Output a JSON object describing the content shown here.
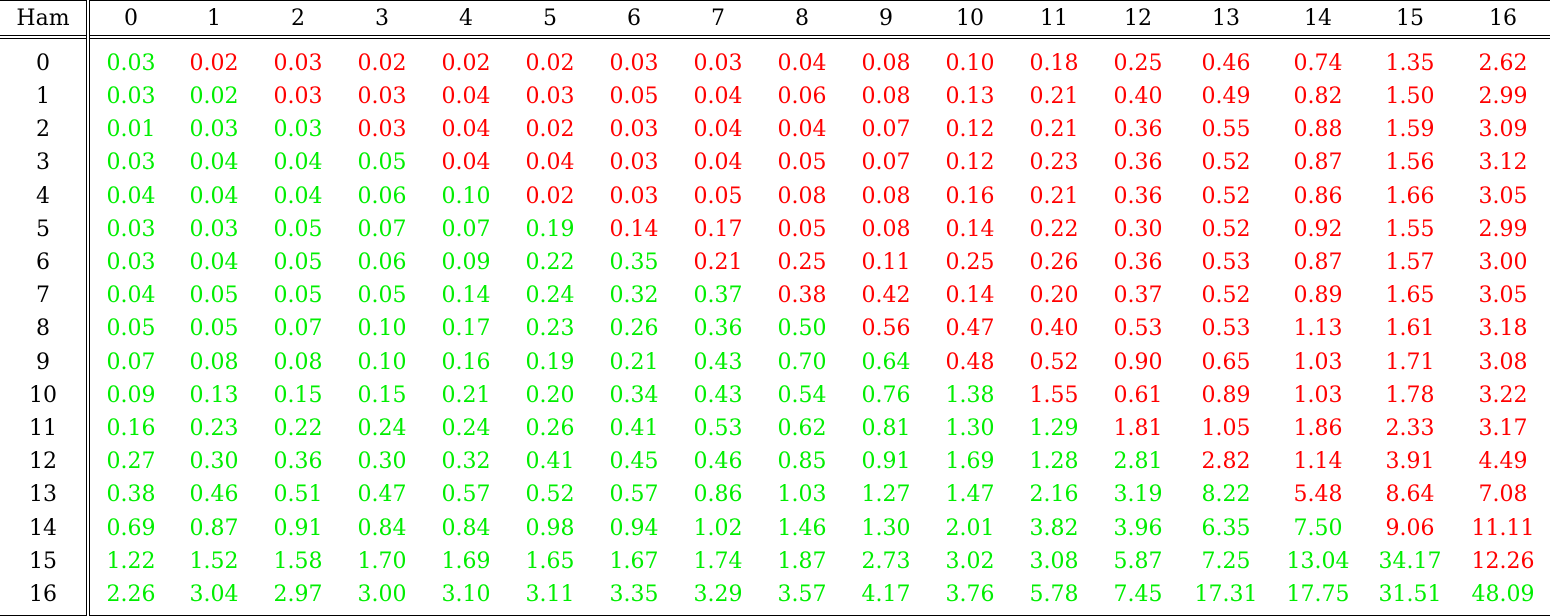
{
  "table": {
    "corner_label": "Ham",
    "columns": [
      "0",
      "1",
      "2",
      "3",
      "4",
      "5",
      "6",
      "7",
      "8",
      "9",
      "10",
      "11",
      "12",
      "13",
      "14",
      "15",
      "16"
    ],
    "colors": {
      "green": "#00ee00",
      "red": "#ff0000"
    },
    "rows": [
      {
        "label": "0",
        "values": [
          "0.03",
          "0.02",
          "0.03",
          "0.02",
          "0.02",
          "0.02",
          "0.03",
          "0.03",
          "0.04",
          "0.08",
          "0.10",
          "0.18",
          "0.25",
          "0.46",
          "0.74",
          "1.35",
          "2.62"
        ],
        "colors": [
          "g",
          "r",
          "r",
          "r",
          "r",
          "r",
          "r",
          "r",
          "r",
          "r",
          "r",
          "r",
          "r",
          "r",
          "r",
          "r",
          "r"
        ]
      },
      {
        "label": "1",
        "values": [
          "0.03",
          "0.02",
          "0.03",
          "0.03",
          "0.04",
          "0.03",
          "0.05",
          "0.04",
          "0.06",
          "0.08",
          "0.13",
          "0.21",
          "0.40",
          "0.49",
          "0.82",
          "1.50",
          "2.99"
        ],
        "colors": [
          "g",
          "g",
          "r",
          "r",
          "r",
          "r",
          "r",
          "r",
          "r",
          "r",
          "r",
          "r",
          "r",
          "r",
          "r",
          "r",
          "r"
        ]
      },
      {
        "label": "2",
        "values": [
          "0.01",
          "0.03",
          "0.03",
          "0.03",
          "0.04",
          "0.02",
          "0.03",
          "0.04",
          "0.04",
          "0.07",
          "0.12",
          "0.21",
          "0.36",
          "0.55",
          "0.88",
          "1.59",
          "3.09"
        ],
        "colors": [
          "g",
          "g",
          "g",
          "r",
          "r",
          "r",
          "r",
          "r",
          "r",
          "r",
          "r",
          "r",
          "r",
          "r",
          "r",
          "r",
          "r"
        ]
      },
      {
        "label": "3",
        "values": [
          "0.03",
          "0.04",
          "0.04",
          "0.05",
          "0.04",
          "0.04",
          "0.03",
          "0.04",
          "0.05",
          "0.07",
          "0.12",
          "0.23",
          "0.36",
          "0.52",
          "0.87",
          "1.56",
          "3.12"
        ],
        "colors": [
          "g",
          "g",
          "g",
          "g",
          "r",
          "r",
          "r",
          "r",
          "r",
          "r",
          "r",
          "r",
          "r",
          "r",
          "r",
          "r",
          "r"
        ]
      },
      {
        "label": "4",
        "values": [
          "0.04",
          "0.04",
          "0.04",
          "0.06",
          "0.10",
          "0.02",
          "0.03",
          "0.05",
          "0.08",
          "0.08",
          "0.16",
          "0.21",
          "0.36",
          "0.52",
          "0.86",
          "1.66",
          "3.05"
        ],
        "colors": [
          "g",
          "g",
          "g",
          "g",
          "g",
          "r",
          "r",
          "r",
          "r",
          "r",
          "r",
          "r",
          "r",
          "r",
          "r",
          "r",
          "r"
        ]
      },
      {
        "label": "5",
        "values": [
          "0.03",
          "0.03",
          "0.05",
          "0.07",
          "0.07",
          "0.19",
          "0.14",
          "0.17",
          "0.05",
          "0.08",
          "0.14",
          "0.22",
          "0.30",
          "0.52",
          "0.92",
          "1.55",
          "2.99"
        ],
        "colors": [
          "g",
          "g",
          "g",
          "g",
          "g",
          "g",
          "r",
          "r",
          "r",
          "r",
          "r",
          "r",
          "r",
          "r",
          "r",
          "r",
          "r"
        ]
      },
      {
        "label": "6",
        "values": [
          "0.03",
          "0.04",
          "0.05",
          "0.06",
          "0.09",
          "0.22",
          "0.35",
          "0.21",
          "0.25",
          "0.11",
          "0.25",
          "0.26",
          "0.36",
          "0.53",
          "0.87",
          "1.57",
          "3.00"
        ],
        "colors": [
          "g",
          "g",
          "g",
          "g",
          "g",
          "g",
          "g",
          "r",
          "r",
          "r",
          "r",
          "r",
          "r",
          "r",
          "r",
          "r",
          "r"
        ]
      },
      {
        "label": "7",
        "values": [
          "0.04",
          "0.05",
          "0.05",
          "0.05",
          "0.14",
          "0.24",
          "0.32",
          "0.37",
          "0.38",
          "0.42",
          "0.14",
          "0.20",
          "0.37",
          "0.52",
          "0.89",
          "1.65",
          "3.05"
        ],
        "colors": [
          "g",
          "g",
          "g",
          "g",
          "g",
          "g",
          "g",
          "g",
          "r",
          "r",
          "r",
          "r",
          "r",
          "r",
          "r",
          "r",
          "r"
        ]
      },
      {
        "label": "8",
        "values": [
          "0.05",
          "0.05",
          "0.07",
          "0.10",
          "0.17",
          "0.23",
          "0.26",
          "0.36",
          "0.50",
          "0.56",
          "0.47",
          "0.40",
          "0.53",
          "0.53",
          "1.13",
          "1.61",
          "3.18"
        ],
        "colors": [
          "g",
          "g",
          "g",
          "g",
          "g",
          "g",
          "g",
          "g",
          "g",
          "r",
          "r",
          "r",
          "r",
          "r",
          "r",
          "r",
          "r"
        ]
      },
      {
        "label": "9",
        "values": [
          "0.07",
          "0.08",
          "0.08",
          "0.10",
          "0.16",
          "0.19",
          "0.21",
          "0.43",
          "0.70",
          "0.64",
          "0.48",
          "0.52",
          "0.90",
          "0.65",
          "1.03",
          "1.71",
          "3.08"
        ],
        "colors": [
          "g",
          "g",
          "g",
          "g",
          "g",
          "g",
          "g",
          "g",
          "g",
          "g",
          "r",
          "r",
          "r",
          "r",
          "r",
          "r",
          "r"
        ]
      },
      {
        "label": "10",
        "values": [
          "0.09",
          "0.13",
          "0.15",
          "0.15",
          "0.21",
          "0.20",
          "0.34",
          "0.43",
          "0.54",
          "0.76",
          "1.38",
          "1.55",
          "0.61",
          "0.89",
          "1.03",
          "1.78",
          "3.22"
        ],
        "colors": [
          "g",
          "g",
          "g",
          "g",
          "g",
          "g",
          "g",
          "g",
          "g",
          "g",
          "g",
          "r",
          "r",
          "r",
          "r",
          "r",
          "r"
        ]
      },
      {
        "label": "11",
        "values": [
          "0.16",
          "0.23",
          "0.22",
          "0.24",
          "0.24",
          "0.26",
          "0.41",
          "0.53",
          "0.62",
          "0.81",
          "1.30",
          "1.29",
          "1.81",
          "1.05",
          "1.86",
          "2.33",
          "3.17"
        ],
        "colors": [
          "g",
          "g",
          "g",
          "g",
          "g",
          "g",
          "g",
          "g",
          "g",
          "g",
          "g",
          "g",
          "r",
          "r",
          "r",
          "r",
          "r"
        ]
      },
      {
        "label": "12",
        "values": [
          "0.27",
          "0.30",
          "0.36",
          "0.30",
          "0.32",
          "0.41",
          "0.45",
          "0.46",
          "0.85",
          "0.91",
          "1.69",
          "1.28",
          "2.81",
          "2.82",
          "1.14",
          "3.91",
          "4.49"
        ],
        "colors": [
          "g",
          "g",
          "g",
          "g",
          "g",
          "g",
          "g",
          "g",
          "g",
          "g",
          "g",
          "g",
          "g",
          "r",
          "r",
          "r",
          "r"
        ]
      },
      {
        "label": "13",
        "values": [
          "0.38",
          "0.46",
          "0.51",
          "0.47",
          "0.57",
          "0.52",
          "0.57",
          "0.86",
          "1.03",
          "1.27",
          "1.47",
          "2.16",
          "3.19",
          "8.22",
          "5.48",
          "8.64",
          "7.08"
        ],
        "colors": [
          "g",
          "g",
          "g",
          "g",
          "g",
          "g",
          "g",
          "g",
          "g",
          "g",
          "g",
          "g",
          "g",
          "g",
          "r",
          "r",
          "r"
        ]
      },
      {
        "label": "14",
        "values": [
          "0.69",
          "0.87",
          "0.91",
          "0.84",
          "0.84",
          "0.98",
          "0.94",
          "1.02",
          "1.46",
          "1.30",
          "2.01",
          "3.82",
          "3.96",
          "6.35",
          "7.50",
          "9.06",
          "11.11"
        ],
        "colors": [
          "g",
          "g",
          "g",
          "g",
          "g",
          "g",
          "g",
          "g",
          "g",
          "g",
          "g",
          "g",
          "g",
          "g",
          "g",
          "r",
          "r"
        ]
      },
      {
        "label": "15",
        "values": [
          "1.22",
          "1.52",
          "1.58",
          "1.70",
          "1.69",
          "1.65",
          "1.67",
          "1.74",
          "1.87",
          "2.73",
          "3.02",
          "3.08",
          "5.87",
          "7.25",
          "13.04",
          "34.17",
          "12.26"
        ],
        "colors": [
          "g",
          "g",
          "g",
          "g",
          "g",
          "g",
          "g",
          "g",
          "g",
          "g",
          "g",
          "g",
          "g",
          "g",
          "g",
          "g",
          "r"
        ]
      },
      {
        "label": "16",
        "values": [
          "2.26",
          "3.04",
          "2.97",
          "3.00",
          "3.10",
          "3.11",
          "3.35",
          "3.29",
          "3.57",
          "4.17",
          "3.76",
          "5.78",
          "7.45",
          "17.31",
          "17.75",
          "31.51",
          "48.09"
        ],
        "colors": [
          "g",
          "g",
          "g",
          "g",
          "g",
          "g",
          "g",
          "g",
          "g",
          "g",
          "g",
          "g",
          "g",
          "g",
          "g",
          "g",
          "g"
        ]
      }
    ]
  }
}
